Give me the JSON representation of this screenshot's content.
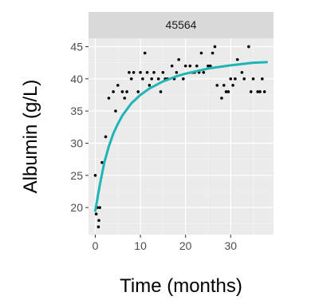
{
  "chart_data": {
    "type": "scatter",
    "facet_label": "45564",
    "xlabel": "Time (months)",
    "ylabel": "Albumin (g/L)",
    "xlim": [
      -1.5,
      39.5
    ],
    "ylim": [
      15.8,
      46.3
    ],
    "x_ticks": [
      0,
      10,
      20,
      30
    ],
    "y_ticks": [
      20,
      25,
      30,
      35,
      40,
      45
    ],
    "grid": true,
    "colors": {
      "panel_bg": "#ebebeb",
      "strip_bg": "#d9d9d9",
      "grid_major": "#ffffff",
      "grid_minor": "#f5f5f5",
      "points": "#000000",
      "fit_line": "#1fb5b5",
      "tick_mark": "#333333"
    },
    "series": [
      {
        "kind": "points",
        "points": [
          {
            "x": 0.0,
            "y": 25
          },
          {
            "x": 0.2,
            "y": 19
          },
          {
            "x": 0.5,
            "y": 20
          },
          {
            "x": 0.7,
            "y": 17
          },
          {
            "x": 0.8,
            "y": 18
          },
          {
            "x": 1.0,
            "y": 20
          },
          {
            "x": 1.5,
            "y": 27
          },
          {
            "x": 2.3,
            "y": 31
          },
          {
            "x": 3.0,
            "y": 37
          },
          {
            "x": 4.0,
            "y": 38
          },
          {
            "x": 4.5,
            "y": 35
          },
          {
            "x": 5.0,
            "y": 39
          },
          {
            "x": 6.0,
            "y": 38
          },
          {
            "x": 6.5,
            "y": 37
          },
          {
            "x": 7.0,
            "y": 38
          },
          {
            "x": 7.5,
            "y": 41
          },
          {
            "x": 8.0,
            "y": 40
          },
          {
            "x": 8.5,
            "y": 41
          },
          {
            "x": 9.5,
            "y": 38
          },
          {
            "x": 10.0,
            "y": 41
          },
          {
            "x": 10.5,
            "y": 40
          },
          {
            "x": 11.0,
            "y": 44
          },
          {
            "x": 11.5,
            "y": 41
          },
          {
            "x": 12.0,
            "y": 39
          },
          {
            "x": 12.5,
            "y": 40
          },
          {
            "x": 13.0,
            "y": 41
          },
          {
            "x": 14.0,
            "y": 40
          },
          {
            "x": 14.5,
            "y": 38
          },
          {
            "x": 15.0,
            "y": 41
          },
          {
            "x": 15.5,
            "y": 40
          },
          {
            "x": 16.0,
            "y": 40
          },
          {
            "x": 17.0,
            "y": 42
          },
          {
            "x": 17.5,
            "y": 40
          },
          {
            "x": 18.0,
            "y": 41
          },
          {
            "x": 18.5,
            "y": 43
          },
          {
            "x": 19.5,
            "y": 40
          },
          {
            "x": 20.0,
            "y": 42
          },
          {
            "x": 21.0,
            "y": 42
          },
          {
            "x": 21.5,
            "y": 41
          },
          {
            "x": 22.0,
            "y": 41
          },
          {
            "x": 22.5,
            "y": 42
          },
          {
            "x": 23.0,
            "y": 41
          },
          {
            "x": 23.5,
            "y": 44
          },
          {
            "x": 24.0,
            "y": 41
          },
          {
            "x": 25.0,
            "y": 42
          },
          {
            "x": 25.5,
            "y": 42
          },
          {
            "x": 26.0,
            "y": 44
          },
          {
            "x": 26.5,
            "y": 45
          },
          {
            "x": 27.0,
            "y": 39
          },
          {
            "x": 28.0,
            "y": 37
          },
          {
            "x": 28.5,
            "y": 39
          },
          {
            "x": 29.0,
            "y": 38
          },
          {
            "x": 29.5,
            "y": 38
          },
          {
            "x": 30.0,
            "y": 40
          },
          {
            "x": 30.5,
            "y": 39
          },
          {
            "x": 31.0,
            "y": 40
          },
          {
            "x": 31.5,
            "y": 43
          },
          {
            "x": 32.5,
            "y": 41
          },
          {
            "x": 33.0,
            "y": 40
          },
          {
            "x": 34.0,
            "y": 45
          },
          {
            "x": 34.5,
            "y": 38
          },
          {
            "x": 35.0,
            "y": 40
          },
          {
            "x": 36.0,
            "y": 38
          },
          {
            "x": 36.5,
            "y": 38
          },
          {
            "x": 37.0,
            "y": 40
          },
          {
            "x": 37.5,
            "y": 38
          }
        ]
      },
      {
        "kind": "line",
        "points": [
          {
            "x": 0,
            "y": 19.5
          },
          {
            "x": 0.5,
            "y": 21.5
          },
          {
            "x": 1,
            "y": 23.5
          },
          {
            "x": 2,
            "y": 27.0
          },
          {
            "x": 3,
            "y": 29.5
          },
          {
            "x": 4,
            "y": 31.5
          },
          {
            "x": 5,
            "y": 33.0
          },
          {
            "x": 6,
            "y": 34.3
          },
          {
            "x": 8,
            "y": 36.2
          },
          {
            "x": 10,
            "y": 37.5
          },
          {
            "x": 12,
            "y": 38.5
          },
          {
            "x": 15,
            "y": 39.6
          },
          {
            "x": 18,
            "y": 40.4
          },
          {
            "x": 20,
            "y": 40.8
          },
          {
            "x": 25,
            "y": 41.6
          },
          {
            "x": 30,
            "y": 42.1
          },
          {
            "x": 35,
            "y": 42.5
          },
          {
            "x": 38,
            "y": 42.6
          }
        ]
      }
    ]
  }
}
